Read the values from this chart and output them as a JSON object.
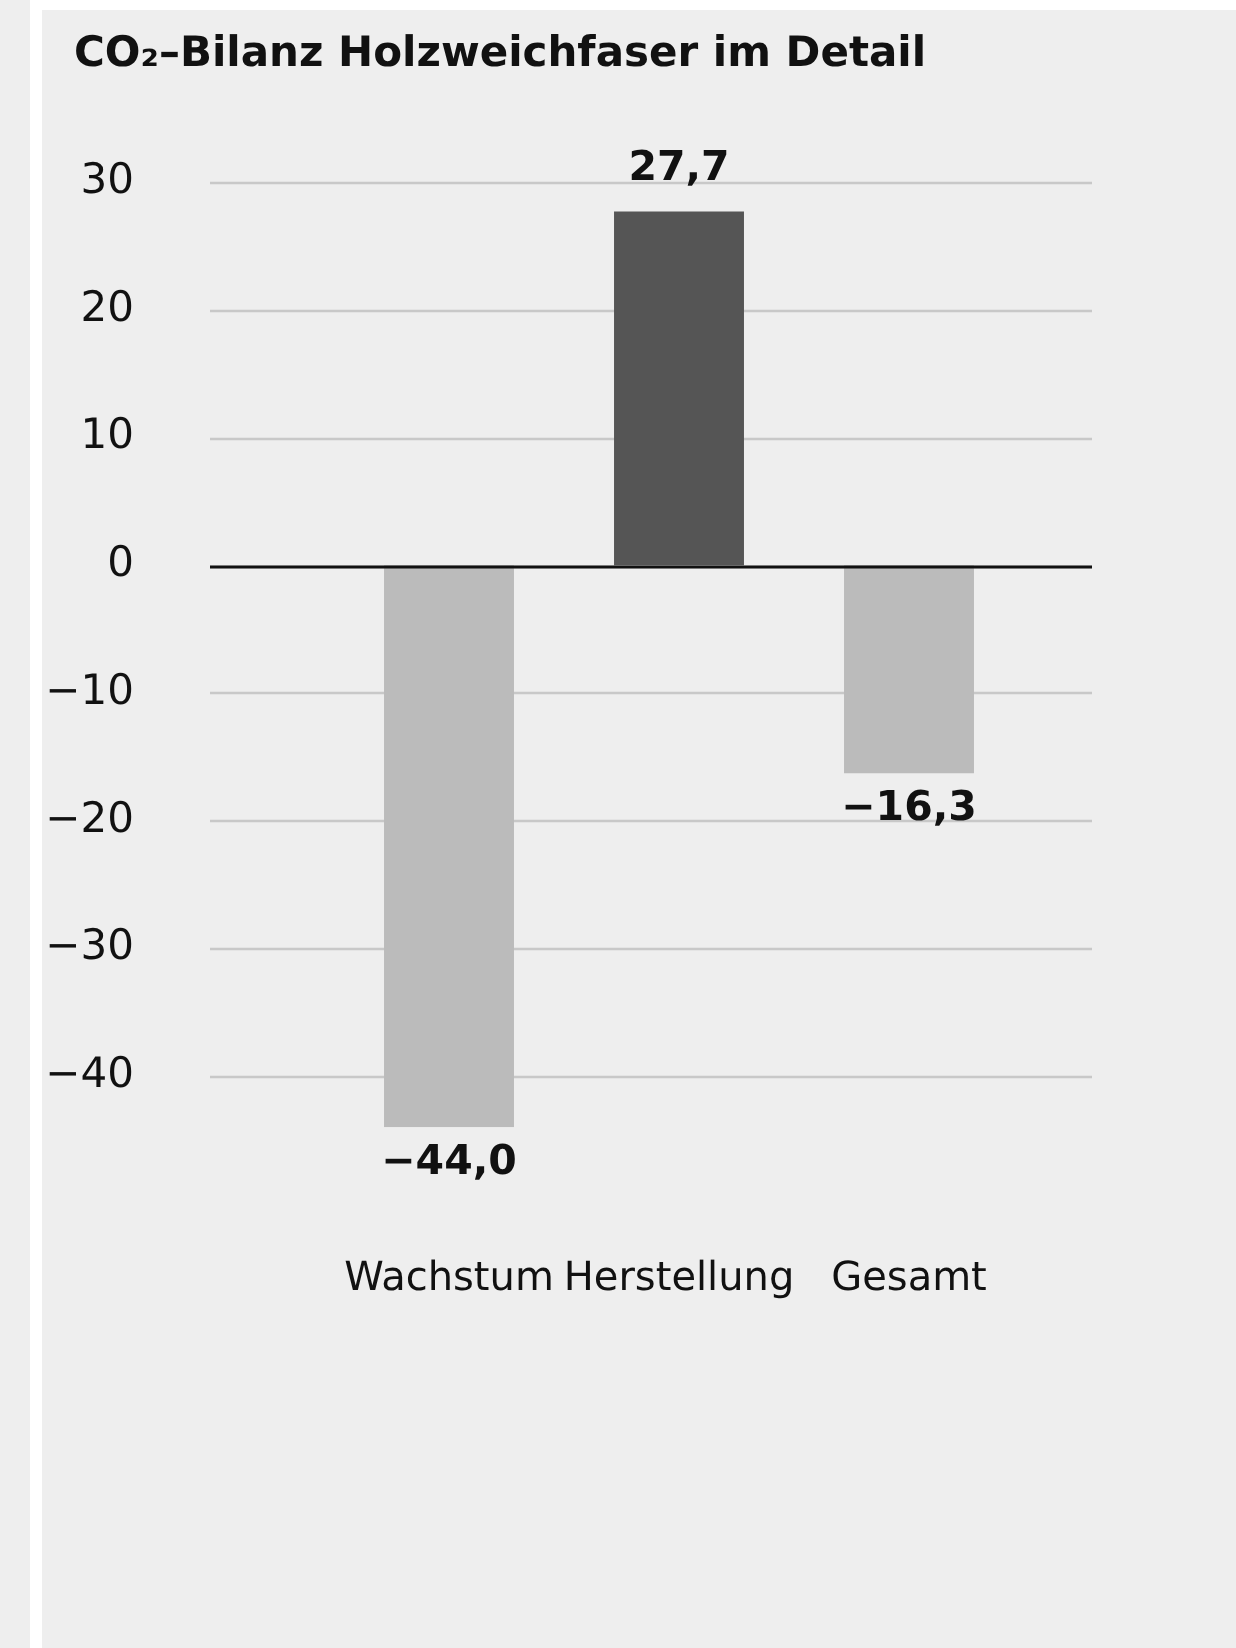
{
  "chart_data": {
    "type": "bar",
    "title": "CO₂–Bilanz Holzweichfaser im Detail",
    "categories": [
      "Wachstum",
      "Herstellung",
      "Gesamt"
    ],
    "values": [
      -44.0,
      27.7,
      -16.3
    ],
    "colors": [
      "#bbbbbb",
      "#555555",
      "#bbbbbb"
    ],
    "value_labels": [
      "−44,0",
      "27,7",
      "−16,3"
    ],
    "ylim": [
      -44,
      30
    ],
    "yticks": [
      {
        "value": -40,
        "label": "−40"
      },
      {
        "value": -30,
        "label": "−30"
      },
      {
        "value": -20,
        "label": "−20"
      },
      {
        "value": -10,
        "label": "−10"
      },
      0,
      10,
      20,
      30
    ],
    "grid": "y"
  }
}
